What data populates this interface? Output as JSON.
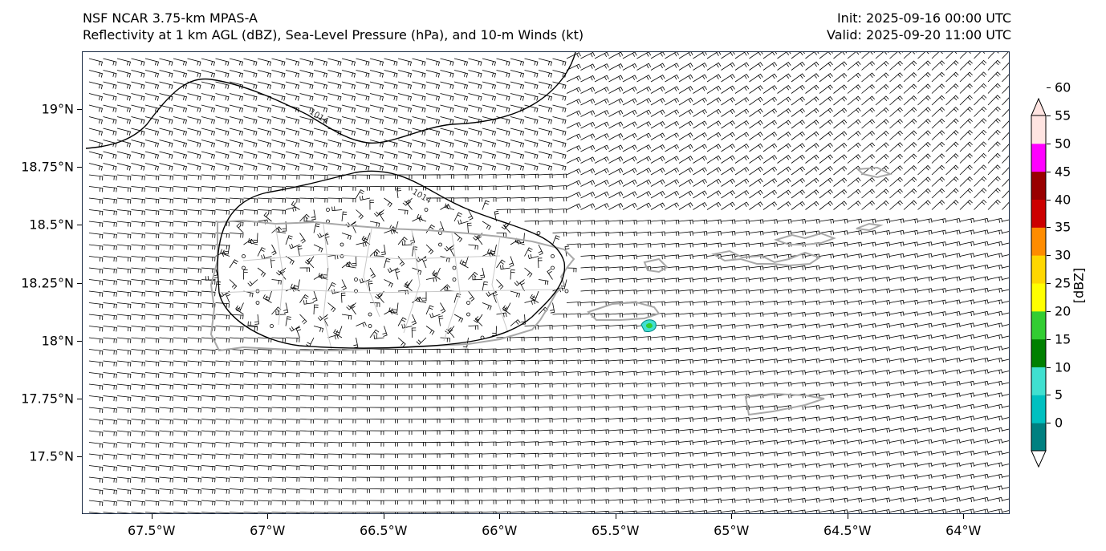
{
  "title": {
    "left_line1": "NSF NCAR 3.75-km MPAS-A",
    "left_line2": "Reflectivity at 1 km AGL (dBZ), Sea-Level Pressure (hPa), and 10-m Winds (kt)",
    "right_line1": "Init: 2025-09-16 00:00 UTC",
    "right_line2": "Valid: 2025-09-20 11:00 UTC"
  },
  "map": {
    "lon_range": [
      -67.8,
      -63.8
    ],
    "lat_range": [
      17.25,
      19.25
    ],
    "y_ticks": [
      {
        "lat": 19.0,
        "label": "19°N"
      },
      {
        "lat": 18.75,
        "label": "18.75°N"
      },
      {
        "lat": 18.5,
        "label": "18.5°N"
      },
      {
        "lat": 18.25,
        "label": "18.25°N"
      },
      {
        "lat": 18.0,
        "label": "18°N"
      },
      {
        "lat": 17.75,
        "label": "17.75°N"
      },
      {
        "lat": 17.5,
        "label": "17.5°N"
      }
    ],
    "x_ticks": [
      {
        "lon": -67.5,
        "label": "67.5°W"
      },
      {
        "lon": -67.0,
        "label": "67°W"
      },
      {
        "lon": -66.5,
        "label": "66.5°W"
      },
      {
        "lon": -66.0,
        "label": "66°W"
      },
      {
        "lon": -65.5,
        "label": "65.5°W"
      },
      {
        "lon": -65.0,
        "label": "65°W"
      },
      {
        "lon": -64.5,
        "label": "64.5°W"
      },
      {
        "lon": -64.0,
        "label": "64°W"
      }
    ],
    "isobar_label": "1014",
    "isobar_color": "#000000",
    "coastline_color": "#a8a8a8",
    "barb_color": "#000000"
  },
  "colorbar": {
    "unit_label": "[dBZ]",
    "levels": [
      "0",
      "5",
      "10",
      "15",
      "20",
      "25",
      "30",
      "35",
      "40",
      "45",
      "50",
      "55",
      "60"
    ],
    "colors": [
      "#ffffff",
      "#008080",
      "#00c0c0",
      "#40e0d0",
      "#008000",
      "#32cd32",
      "#ffff00",
      "#ffd700",
      "#ff8c00",
      "#cc0000",
      "#990000",
      "#ff00ff",
      "#ffe4e1"
    ]
  }
}
